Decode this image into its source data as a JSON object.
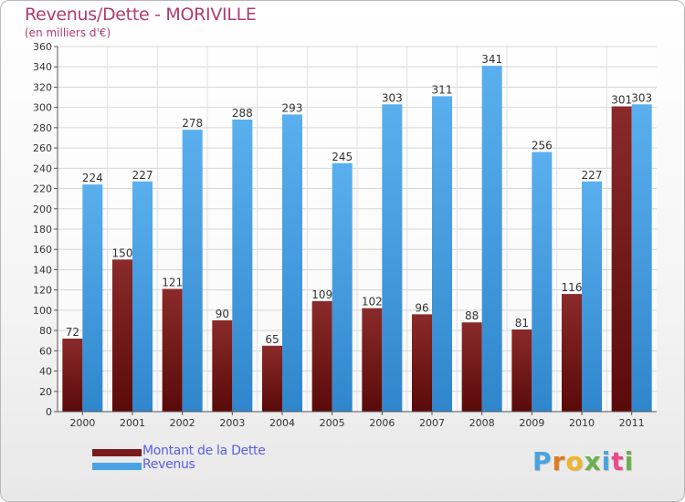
{
  "header": {
    "title": "Revenus/Dette - MORIVILLE",
    "subtitle": "(en milliers d'€)"
  },
  "legend": {
    "debt_label": "Montant de la Dette",
    "revenue_label": "Revenus"
  },
  "logo": {
    "letters": [
      "P",
      "r",
      "o",
      "x",
      "i",
      "t",
      "i"
    ],
    "colors": [
      "#4aa3df",
      "#e07a1f",
      "#f0b429",
      "#6ab04c",
      "#4aa3df",
      "#e84a8a",
      "#6ab04c"
    ]
  },
  "colors": {
    "debt": "#7a1c1c",
    "revenue": "#4aa3e6",
    "title": "#b03a6f",
    "legend_text": "#5a5ee0"
  },
  "chart_data": {
    "type": "bar",
    "title": "Revenus/Dette - MORIVILLE",
    "ylabel": "(en milliers d'€)",
    "xlabel": "",
    "categories": [
      "2000",
      "2001",
      "2002",
      "2003",
      "2004",
      "2005",
      "2006",
      "2007",
      "2008",
      "2009",
      "2010",
      "2011"
    ],
    "series": [
      {
        "name": "Montant de la Dette",
        "values": [
          72,
          150,
          121,
          90,
          65,
          109,
          102,
          96,
          88,
          81,
          116,
          301
        ]
      },
      {
        "name": "Revenus",
        "values": [
          224,
          227,
          278,
          288,
          293,
          245,
          303,
          311,
          341,
          256,
          227,
          303
        ]
      }
    ],
    "ylim": [
      0,
      360
    ],
    "ytick_step": 20,
    "grid": true,
    "legend_position": "bottom-left"
  }
}
